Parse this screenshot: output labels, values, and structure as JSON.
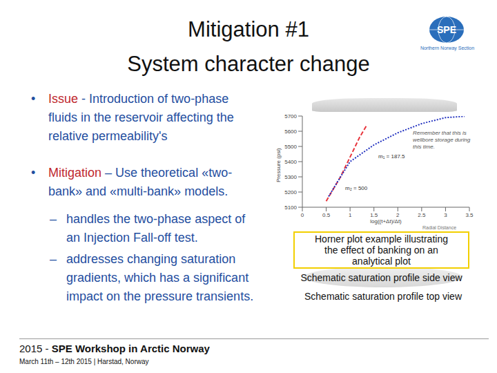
{
  "slide": {
    "title_lines": [
      "Mitigation #1",
      "System character change"
    ],
    "logo": {
      "text": "SPE",
      "caption": "Northern Norway Section"
    },
    "bullet": "•",
    "sub_bullet": "–",
    "bullets": [
      {
        "label": "Issue",
        "text_lines": [
          "- Introduction of two-phase",
          "fluids in the reservoir affecting the",
          "relative permeability's"
        ]
      },
      {
        "label": "Mitigation",
        "text_lines": [
          "– Use theoretical «two-",
          "bank» and «multi-bank» models."
        ],
        "sub_bullets": [
          [
            "handles the two-phase aspect of",
            "an Injection Fall-off test."
          ],
          [
            "addresses changing saturation",
            "gradients, which has a significant",
            "impact on the pressure transients."
          ]
        ]
      }
    ],
    "captions": {
      "horner": [
        "Horner plot example illustrating",
        "the effect of banking on an",
        "analytical plot"
      ],
      "side_view": "Schematic saturation profile side view",
      "top_view": "Schematic saturation profile top view",
      "radial_distance": "Radial Distance"
    },
    "footer": {
      "year": "2015 - ",
      "event": "SPE Workshop in Arctic Norway",
      "details": "March 11th – 12th 2015 | Harstad, Norway"
    }
  },
  "chart_data": {
    "type": "line",
    "x_label": "log((t+Δt)/Δt)",
    "y_label": "Pressure (psi)",
    "annotations": [
      "Remember that this is wellbore storage during this time.",
      "m₁ = 187.5",
      "m₂ = 500"
    ],
    "xlim": [
      0,
      3.5
    ],
    "xticks": [
      0,
      0.5,
      1,
      1.5,
      2,
      2.5,
      3,
      3.5
    ],
    "ylim": [
      5100,
      5700
    ],
    "yticks": [
      5100,
      5200,
      5300,
      5400,
      5500,
      5600,
      5700
    ],
    "grid": false,
    "series": [
      {
        "color": "#e8343c",
        "line_style": "dashed",
        "marker": "none",
        "x": [
          0.5,
          0.8,
          1.0,
          1.2,
          1.35
        ],
        "values": [
          5140,
          5300,
          5430,
          5560,
          5640
        ]
      },
      {
        "color": "#1f2fbf",
        "line_style": "dotted",
        "marker": "none",
        "x": [
          0.55,
          0.8,
          1.0,
          1.5,
          2.0,
          2.5,
          3.0,
          3.4
        ],
        "values": [
          5170,
          5300,
          5400,
          5510,
          5590,
          5650,
          5690,
          5698
        ]
      }
    ]
  }
}
